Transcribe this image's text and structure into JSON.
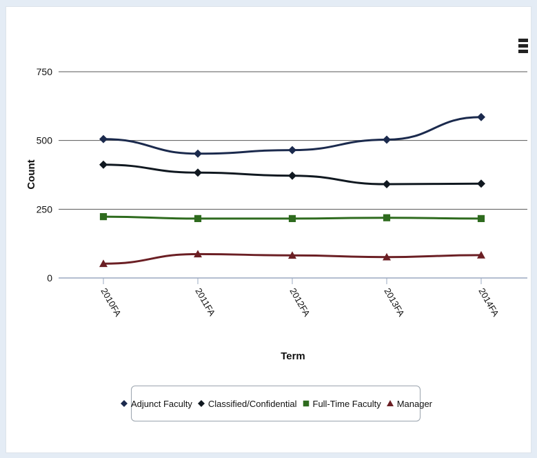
{
  "chart_data": {
    "type": "line",
    "title": "",
    "xlabel": "Term",
    "ylabel": "Count",
    "categories": [
      "2010FA",
      "2011FA",
      "2012FA",
      "2013FA",
      "2014FA"
    ],
    "yticks": [
      0,
      250,
      500,
      750
    ],
    "ylim": [
      0,
      750
    ],
    "grid": true,
    "legend_position": "bottom-center",
    "series": [
      {
        "name": "Adjunct Faculty",
        "values": [
          505,
          452,
          465,
          503,
          585
        ],
        "color": "#1b2a4d",
        "marker": "diamond"
      },
      {
        "name": "Classified/Confidential",
        "values": [
          412,
          383,
          372,
          341,
          343
        ],
        "color": "#101820",
        "marker": "diamond"
      },
      {
        "name": "Full-Time Faculty",
        "values": [
          223,
          216,
          216,
          219,
          216
        ],
        "color": "#2e6b1e",
        "marker": "square"
      },
      {
        "name": "Manager",
        "values": [
          52,
          87,
          82,
          76,
          83
        ],
        "color": "#6b1f24",
        "marker": "triangle"
      }
    ]
  },
  "menu_icon": "hamburger-menu-icon"
}
